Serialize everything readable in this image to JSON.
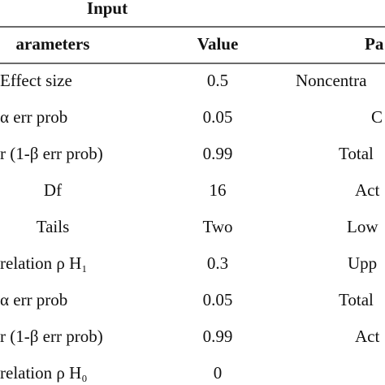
{
  "table": {
    "group_header": "Input",
    "columns": [
      "arameters",
      "Value",
      "Pa"
    ],
    "rows": [
      [
        "Effect size",
        "0.5",
        "Noncentra"
      ],
      [
        "α err prob",
        "0.05",
        "C"
      ],
      [
        "r (1-β err prob)",
        "0.99",
        "Total"
      ],
      [
        "Df",
        "16",
        "Act"
      ],
      [
        "Tails",
        "Two",
        "Low"
      ],
      [
        "relation ρ H₁",
        "0.3",
        "Upp"
      ],
      [
        "α err prob",
        "0.05",
        "Total"
      ],
      [
        "r (1-β err prob)",
        "0.99",
        "Act"
      ],
      [
        "relation ρ H₀",
        "0",
        ""
      ]
    ]
  }
}
